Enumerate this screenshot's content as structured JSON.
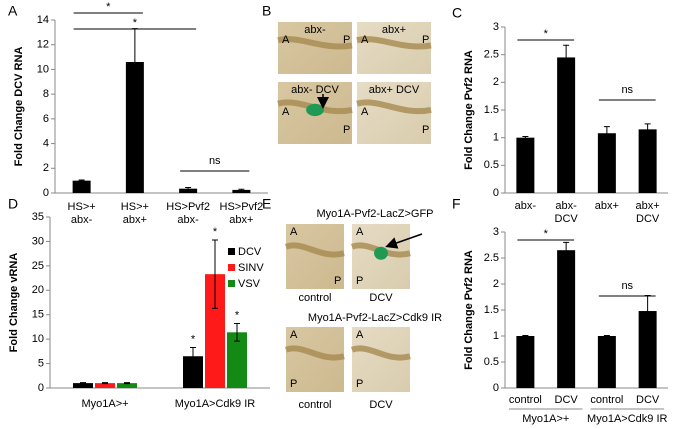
{
  "chart_data": [
    {
      "type": "bar",
      "panel": "A",
      "y_label": "Fold Change DCV RNA",
      "categories": [
        [
          "HS>+",
          "abx-"
        ],
        [
          "HS>+",
          "abx+"
        ],
        [
          "HS>Pvf2",
          "abx-"
        ],
        [
          "HS>Pvf2",
          "abx+"
        ]
      ],
      "values": [
        1,
        10.6,
        0.35,
        0.25
      ],
      "errors": [
        0.05,
        2.7,
        0.1,
        0.05
      ],
      "color": "#000000",
      "ylim": [
        0,
        14
      ],
      "yticks": [
        0,
        2,
        4,
        6,
        8,
        10,
        12,
        14
      ],
      "annotations": [
        "*",
        "*",
        "ns"
      ]
    },
    {
      "type": "bar",
      "panel": "C",
      "y_label": "Fold Change Pvf2 RNA",
      "categories": [
        [
          "abx-"
        ],
        [
          "abx-",
          "DCV"
        ],
        [
          "abx+"
        ],
        [
          "abx+",
          "DCV"
        ]
      ],
      "values": [
        1,
        2.45,
        1.08,
        1.15
      ],
      "errors": [
        0.02,
        0.22,
        0.12,
        0.1
      ],
      "color": "#000000",
      "ylim": [
        0,
        3
      ],
      "yticks": [
        0,
        0.5,
        1,
        1.5,
        2,
        2.5,
        3
      ],
      "annotations": [
        "*",
        "ns"
      ]
    },
    {
      "type": "grouped-bar",
      "panel": "D",
      "y_label": "Fold Change vRNA",
      "categories": [
        "Myo1A>+",
        "Myo1A>Cdk9 IR"
      ],
      "series": [
        {
          "name": "DCV",
          "color": "#000000",
          "values": [
            1,
            6.5
          ],
          "errors": [
            0.1,
            1.8
          ]
        },
        {
          "name": "SINV",
          "color": "#ff1a1a",
          "values": [
            1,
            23.3
          ],
          "errors": [
            0.1,
            7
          ]
        },
        {
          "name": "VSV",
          "color": "#138a13",
          "values": [
            1,
            11.4
          ],
          "errors": [
            0.1,
            1.8
          ]
        }
      ],
      "ylim": [
        0,
        35
      ],
      "yticks": [
        0,
        5,
        10,
        15,
        20,
        25,
        30,
        35
      ],
      "annotations": [
        "*",
        "*",
        "*"
      ]
    },
    {
      "type": "bar",
      "panel": "F",
      "y_label": "Fold Change Pvf2 RNA",
      "categories": [
        [
          "control"
        ],
        [
          "DCV"
        ],
        [
          "control"
        ],
        [
          "DCV"
        ]
      ],
      "groups": [
        "Myo1A>+",
        "Myo1A>Cdk9 IR"
      ],
      "values": [
        1,
        2.65,
        1,
        1.48
      ],
      "errors": [
        0.01,
        0.15,
        0.01,
        0.3
      ],
      "color": "#000000",
      "ylim": [
        0,
        3
      ],
      "yticks": [
        0,
        0.5,
        1,
        1.5,
        2,
        2.5,
        3
      ],
      "annotations": [
        "*",
        "ns"
      ]
    }
  ],
  "images": [
    {
      "panel": "B",
      "tiles": [
        {
          "label": "abx-",
          "letters": [
            "A",
            "P"
          ]
        },
        {
          "label": "abx+",
          "letters": [
            "A",
            "P"
          ]
        },
        {
          "label": "abx- DCV",
          "letters": [
            "A",
            "P"
          ]
        },
        {
          "label": "abx+ DCV",
          "letters": [
            "A",
            "P"
          ]
        }
      ]
    },
    {
      "panel": "E",
      "rows": [
        {
          "title": "Myo1A-Pvf2-LacZ>GFP",
          "tiles": [
            {
              "caption": "control",
              "letters": [
                "A",
                "P"
              ]
            },
            {
              "caption": "DCV",
              "letters": [
                "A",
                "P"
              ]
            }
          ]
        },
        {
          "title": "Myo1A-Pvf2-LacZ>Cdk9 IR",
          "tiles": [
            {
              "caption": "control",
              "letters": [
                "A",
                "P"
              ]
            },
            {
              "caption": "DCV",
              "letters": [
                "A",
                "P"
              ]
            }
          ]
        }
      ]
    }
  ]
}
